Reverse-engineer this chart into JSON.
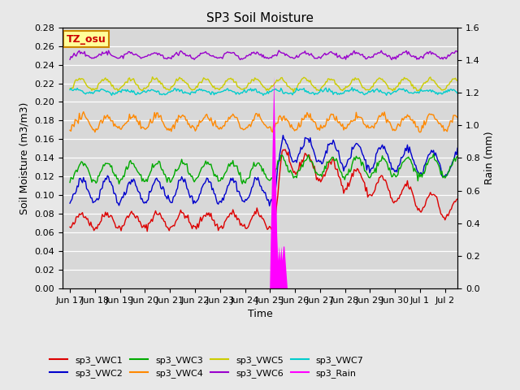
{
  "title": "SP3 Soil Moisture",
  "xlabel": "Time",
  "ylabel_left": "Soil Moisture (m3/m3)",
  "ylabel_right": "Rain (mm)",
  "ylim_left": [
    0.0,
    0.28
  ],
  "ylim_right": [
    0.0,
    1.56
  ],
  "colors": {
    "sp3_VWC1": "#dd0000",
    "sp3_VWC2": "#0000cc",
    "sp3_VWC3": "#00aa00",
    "sp3_VWC4": "#ff8800",
    "sp3_VWC5": "#cccc00",
    "sp3_VWC6": "#9900cc",
    "sp3_VWC7": "#00cccc",
    "sp3_Rain": "#ff00ff"
  },
  "xtick_labels": [
    "Jun 17",
    "Jun 18",
    "Jun 19",
    "Jun 20",
    "Jun 21",
    "Jun 22",
    "Jun 23",
    "Jun 24",
    "Jun 25",
    "Jun 26",
    "Jun 27",
    "Jun 28",
    "Jun 29",
    "Jun 30",
    "Jul 1",
    "Jul 2"
  ],
  "xtick_positions": [
    0,
    1,
    2,
    3,
    4,
    5,
    6,
    7,
    8,
    9,
    10,
    11,
    12,
    13,
    14,
    15
  ],
  "box_label": "TZ_osu",
  "box_color": "#ffff99",
  "box_edge_color": "#cc8800",
  "plot_bg_color": "#d8d8d8",
  "fig_bg_color": "#e8e8e8"
}
